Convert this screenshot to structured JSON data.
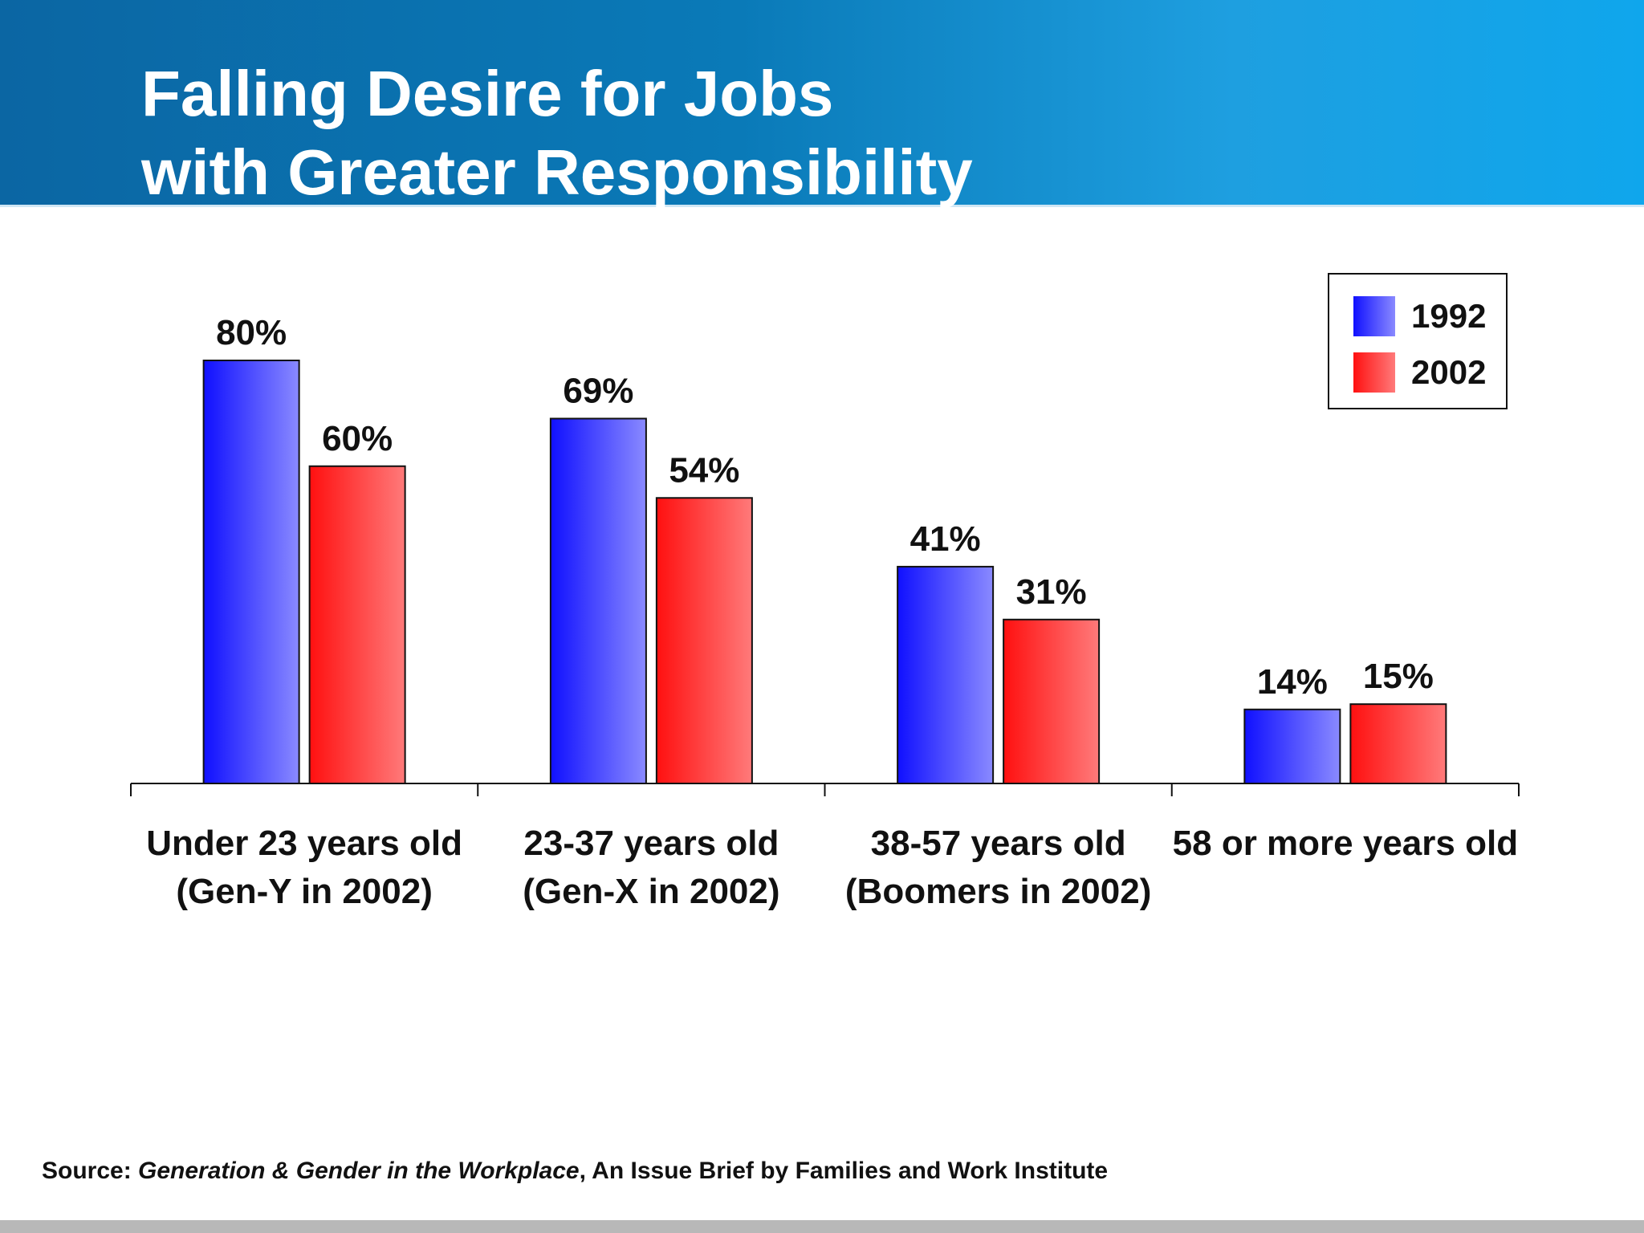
{
  "slide": {
    "title_line_1": "Falling Desire for Jobs",
    "title_line_2": "with Greater Responsibility",
    "header_colors": [
      "#0b66a3",
      "#1e9fe0"
    ]
  },
  "source": {
    "prefix": "Source:  ",
    "title": "Generation & Gender in the Workplace",
    "suffix": ", An Issue Brief by Families and Work Institute"
  },
  "chart_data": {
    "type": "bar",
    "categories": [
      [
        "Under 23 years old",
        "(Gen-Y in 2002)"
      ],
      [
        "23-37 years old",
        "(Gen-X in 2002)"
      ],
      [
        "38-57 years old",
        "(Boomers in 2002)"
      ],
      [
        "58 or more years old"
      ]
    ],
    "series": [
      {
        "name": "1992",
        "values": [
          80,
          69,
          41,
          14
        ],
        "labels": [
          "80%",
          "69%",
          "41%",
          "14%"
        ],
        "color_dark": "#1010ff",
        "color_light": "#8a8aff"
      },
      {
        "name": "2002",
        "values": [
          60,
          54,
          31,
          15
        ],
        "labels": [
          "60%",
          "54%",
          "31%",
          "15%"
        ],
        "color_dark": "#ff1010",
        "color_light": "#ff7a7a"
      }
    ],
    "ylim": [
      0,
      80
    ],
    "legend_position": "top-right",
    "grid": false
  }
}
